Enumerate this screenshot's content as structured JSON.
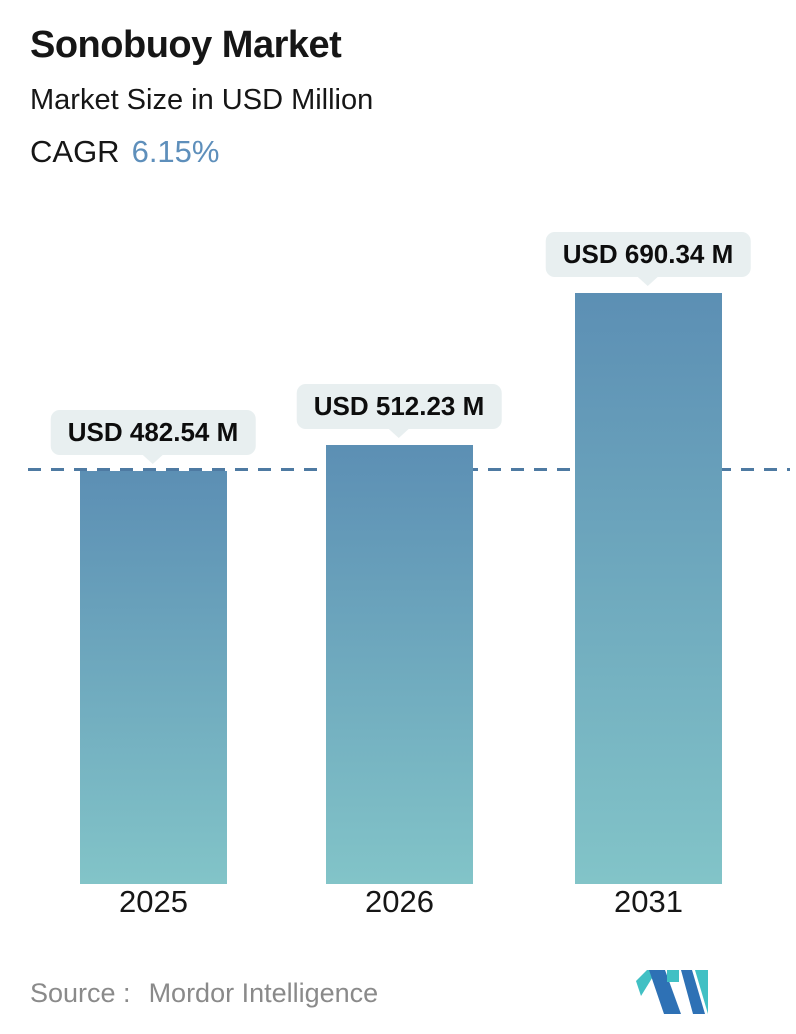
{
  "header": {
    "title": "Sonobuoy Market",
    "subtitle": "Market Size in USD Million",
    "cagr_label": "CAGR",
    "cagr_value": "6.15%"
  },
  "chart_data": {
    "type": "bar",
    "categories": [
      "2025",
      "2026",
      "2031"
    ],
    "values": [
      482.54,
      512.23,
      690.34
    ],
    "value_labels": [
      "USD 482.54 M",
      "USD 512.23 M",
      "USD 690.34 M"
    ],
    "title": "Sonobuoy Market",
    "subtitle": "Market Size in USD Million",
    "cagr": "6.15%",
    "xlabel": "",
    "ylabel": "Market Size in USD Million",
    "ylim": [
      0,
      800
    ],
    "grid": false,
    "legend": "none",
    "reference_line": {
      "value": 482.54,
      "style": "dashed",
      "color": "#4e7aa2"
    },
    "bar_gradient_top": "#5c8fb4",
    "bar_gradient_bottom": "#82c4c8"
  },
  "colors": {
    "accent_blue": "#5e8fbb",
    "bubble_bg": "#e8eff0",
    "dashed_line": "#4e7aa2",
    "text": "#161616",
    "source_text": "#8a8a8a",
    "logo_teal": "#41c0c4",
    "logo_blue": "#2e71b5"
  },
  "footer": {
    "source_label": "Source :",
    "source_value": "Mordor Intelligence",
    "logo_name": "mordor-intelligence-logo"
  }
}
